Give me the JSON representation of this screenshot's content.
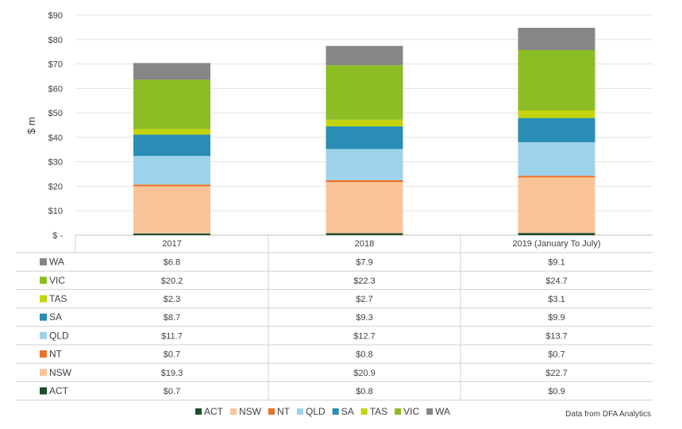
{
  "chart_data": {
    "type": "bar",
    "stacked": true,
    "title": "",
    "ylabel": "$ m",
    "xlabel": "",
    "ylim": [
      0,
      90
    ],
    "yticks": [
      {
        "value": 0,
        "label": "$ -"
      },
      {
        "value": 10,
        "label": "$10"
      },
      {
        "value": 20,
        "label": "$20"
      },
      {
        "value": 30,
        "label": "$30"
      },
      {
        "value": 40,
        "label": "$40"
      },
      {
        "value": 50,
        "label": "$50"
      },
      {
        "value": 60,
        "label": "$60"
      },
      {
        "value": 70,
        "label": "$70"
      },
      {
        "value": 80,
        "label": "$80"
      },
      {
        "value": 90,
        "label": "$90"
      }
    ],
    "grid": true,
    "categories": [
      "2017",
      "2018",
      "2019 (January To July)"
    ],
    "series": [
      {
        "name": "ACT",
        "color": "#1e4d2b",
        "values": [
          0.7,
          0.8,
          0.9
        ],
        "labels": [
          "$0.7",
          "$0.8",
          "$0.9"
        ]
      },
      {
        "name": "NSW",
        "color": "#f9c49a",
        "values": [
          19.3,
          20.9,
          22.7
        ],
        "labels": [
          "$19.3",
          "$20.9",
          "$22.7"
        ]
      },
      {
        "name": "NT",
        "color": "#ea7125",
        "values": [
          0.7,
          0.8,
          0.7
        ],
        "labels": [
          "$0.7",
          "$0.8",
          "$0.7"
        ]
      },
      {
        "name": "QLD",
        "color": "#9dd3ea",
        "values": [
          11.7,
          12.7,
          13.7
        ],
        "labels": [
          "$11.7",
          "$12.7",
          "$13.7"
        ]
      },
      {
        "name": "SA",
        "color": "#2a8db5",
        "values": [
          8.7,
          9.3,
          9.9
        ],
        "labels": [
          "$8.7",
          "$9.3",
          "$9.9"
        ]
      },
      {
        "name": "TAS",
        "color": "#c5d40f",
        "values": [
          2.3,
          2.7,
          3.1
        ],
        "labels": [
          "$2.3",
          "$2.7",
          "$3.1"
        ]
      },
      {
        "name": "VIC",
        "color": "#8cbd24",
        "values": [
          20.2,
          22.3,
          24.7
        ],
        "labels": [
          "$20.2",
          "$22.3",
          "$24.7"
        ]
      },
      {
        "name": "WA",
        "color": "#868686",
        "values": [
          6.8,
          7.9,
          9.1
        ],
        "labels": [
          "$6.8",
          "$7.9",
          "$9.1"
        ]
      }
    ],
    "legend_position": "bottom",
    "data_table": true
  },
  "source_note": "Data from DFA Analytics"
}
